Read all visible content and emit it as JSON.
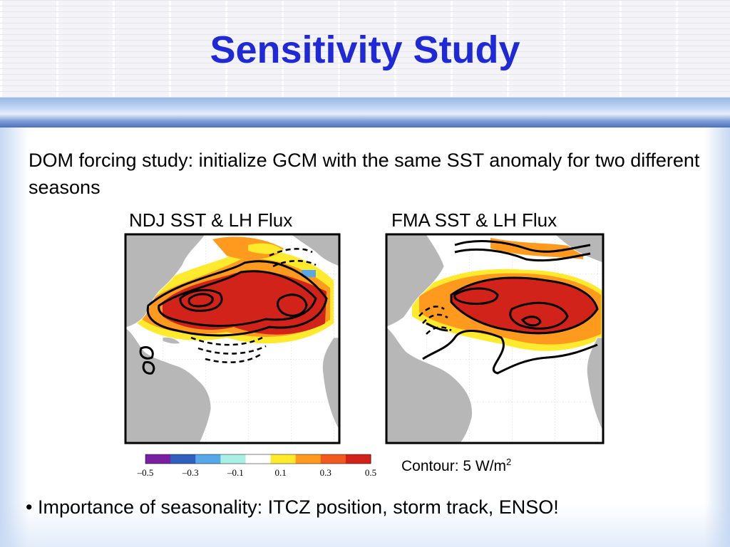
{
  "slide": {
    "title": "Sensitivity Study",
    "intro": "DOM forcing study: initialize GCM with the same SST anomaly for two different seasons",
    "bullet_marker": "•",
    "bullet": "Importance of seasonality: ITCZ position, storm track, ENSO!"
  },
  "panels": [
    {
      "title": "NDJ SST & LH Flux"
    },
    {
      "title": "FMA SST & LH Flux"
    }
  ],
  "colorbar": {
    "colors": [
      "#7b1fa2",
      "#2f5fbf",
      "#56a8e8",
      "#a8efe6",
      "#ffffff",
      "#ffea2e",
      "#ff9a1e",
      "#f05a1e",
      "#d2231a"
    ],
    "ticks": [
      "–0.5",
      "–0.3",
      "–0.1",
      "0.1",
      "0.3",
      "0.5"
    ]
  },
  "contour_note": {
    "text": "Contour: 5 W/m",
    "sup": "2"
  },
  "theme": {
    "title_color": "#1f2ad6",
    "land_color": "#b7b7b7",
    "strong_anomaly": "#d2231a",
    "contour_color": "#000000"
  }
}
